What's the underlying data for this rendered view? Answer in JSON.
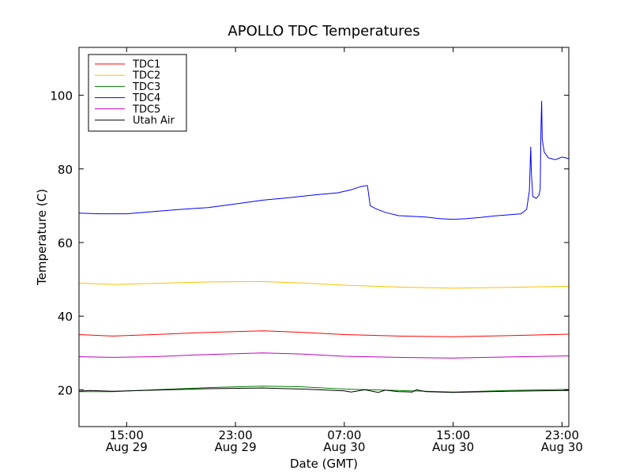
{
  "chart_data": {
    "type": "line",
    "title": "APOLLO TDC Temperatures",
    "xlabel": "Date (GMT)",
    "ylabel": "Temperature (C)",
    "x_unit": "hours since Aug 29 00:00 GMT",
    "xlim": [
      11.5,
      47.5
    ],
    "ylim": [
      10,
      113
    ],
    "yticks": [
      20,
      40,
      60,
      80,
      100
    ],
    "xticks": [
      {
        "x": 15,
        "time": "15:00",
        "date": "Aug 29"
      },
      {
        "x": 23,
        "time": "23:00",
        "date": "Aug 29"
      },
      {
        "x": 31,
        "time": "07:00",
        "date": "Aug 30"
      },
      {
        "x": 39,
        "time": "15:00",
        "date": "Aug 30"
      },
      {
        "x": 47,
        "time": "23:00",
        "date": "Aug 30"
      }
    ],
    "legend_position": "top-left",
    "series": [
      {
        "name": "TDC1",
        "color": "#ff0000",
        "points": [
          [
            11.5,
            35.0
          ],
          [
            14,
            34.6
          ],
          [
            17,
            35.0
          ],
          [
            21,
            35.6
          ],
          [
            25,
            36.0
          ],
          [
            28,
            35.6
          ],
          [
            31,
            35.0
          ],
          [
            35,
            34.6
          ],
          [
            39,
            34.4
          ],
          [
            43,
            34.7
          ],
          [
            47.5,
            35.1
          ]
        ]
      },
      {
        "name": "TDC2",
        "color": "#ffbf00",
        "points": [
          [
            11.5,
            49.0
          ],
          [
            14,
            48.6
          ],
          [
            17,
            48.9
          ],
          [
            21,
            49.3
          ],
          [
            25,
            49.4
          ],
          [
            28,
            49.0
          ],
          [
            31,
            48.4
          ],
          [
            35,
            47.9
          ],
          [
            39,
            47.6
          ],
          [
            43,
            47.8
          ],
          [
            47.5,
            48.1
          ]
        ]
      },
      {
        "name": "TDC3",
        "color": "#008000",
        "points": [
          [
            11.5,
            19.5
          ],
          [
            14,
            19.5
          ],
          [
            17,
            20.0
          ],
          [
            21,
            20.6
          ],
          [
            25,
            21.0
          ],
          [
            28,
            20.8
          ],
          [
            31,
            20.2
          ],
          [
            35,
            19.8
          ],
          [
            39,
            19.4
          ],
          [
            43,
            19.8
          ],
          [
            47.5,
            20.1
          ]
        ]
      },
      {
        "name": "TDC4",
        "color": "#0000ff",
        "points": [
          [
            11.5,
            68.0
          ],
          [
            13,
            67.8
          ],
          [
            15,
            67.8
          ],
          [
            17,
            68.4
          ],
          [
            19,
            69.0
          ],
          [
            21,
            69.5
          ],
          [
            23,
            70.5
          ],
          [
            25,
            71.5
          ],
          [
            27,
            72.2
          ],
          [
            29,
            73.0
          ],
          [
            30.5,
            73.5
          ],
          [
            31.5,
            74.3
          ],
          [
            32.2,
            75.2
          ],
          [
            32.7,
            75.5
          ],
          [
            32.9,
            70.0
          ],
          [
            33.3,
            69.2
          ],
          [
            34,
            68.2
          ],
          [
            35,
            67.3
          ],
          [
            36,
            67.1
          ],
          [
            37,
            66.9
          ],
          [
            38,
            66.5
          ],
          [
            39,
            66.3
          ],
          [
            40,
            66.5
          ],
          [
            41,
            66.8
          ],
          [
            42,
            67.2
          ],
          [
            43,
            67.5
          ],
          [
            44,
            67.8
          ],
          [
            44.4,
            69.0
          ],
          [
            44.6,
            74.0
          ],
          [
            44.7,
            86.0
          ],
          [
            44.75,
            79.0
          ],
          [
            44.85,
            72.5
          ],
          [
            45.1,
            72.0
          ],
          [
            45.3,
            72.8
          ],
          [
            45.4,
            74.5
          ],
          [
            45.45,
            90.0
          ],
          [
            45.5,
            98.5
          ],
          [
            45.55,
            88.0
          ],
          [
            45.7,
            84.5
          ],
          [
            46.0,
            83.0
          ],
          [
            46.5,
            82.5
          ],
          [
            47.0,
            83.2
          ],
          [
            47.5,
            82.8
          ]
        ]
      },
      {
        "name": "TDC5",
        "color": "#bf00bf",
        "points": [
          [
            11.5,
            29.0
          ],
          [
            14,
            28.8
          ],
          [
            17,
            29.0
          ],
          [
            21,
            29.6
          ],
          [
            25,
            30.0
          ],
          [
            28,
            29.7
          ],
          [
            31,
            29.1
          ],
          [
            35,
            28.8
          ],
          [
            39,
            28.6
          ],
          [
            43,
            28.9
          ],
          [
            47.5,
            29.2
          ]
        ]
      },
      {
        "name": "Utah Air",
        "color": "#000000",
        "points": [
          [
            11.5,
            19.6
          ],
          [
            12.3,
            19.8
          ],
          [
            14,
            19.6
          ],
          [
            17,
            19.9
          ],
          [
            21,
            20.3
          ],
          [
            25,
            20.5
          ],
          [
            28,
            20.2
          ],
          [
            31,
            19.7
          ],
          [
            31.5,
            19.4
          ],
          [
            32.5,
            20.0
          ],
          [
            33.5,
            19.3
          ],
          [
            34,
            19.9
          ],
          [
            35,
            19.5
          ],
          [
            36,
            19.4
          ],
          [
            36.3,
            20.0
          ],
          [
            37,
            19.5
          ],
          [
            39,
            19.3
          ],
          [
            43,
            19.6
          ],
          [
            47.5,
            19.8
          ]
        ]
      }
    ]
  }
}
